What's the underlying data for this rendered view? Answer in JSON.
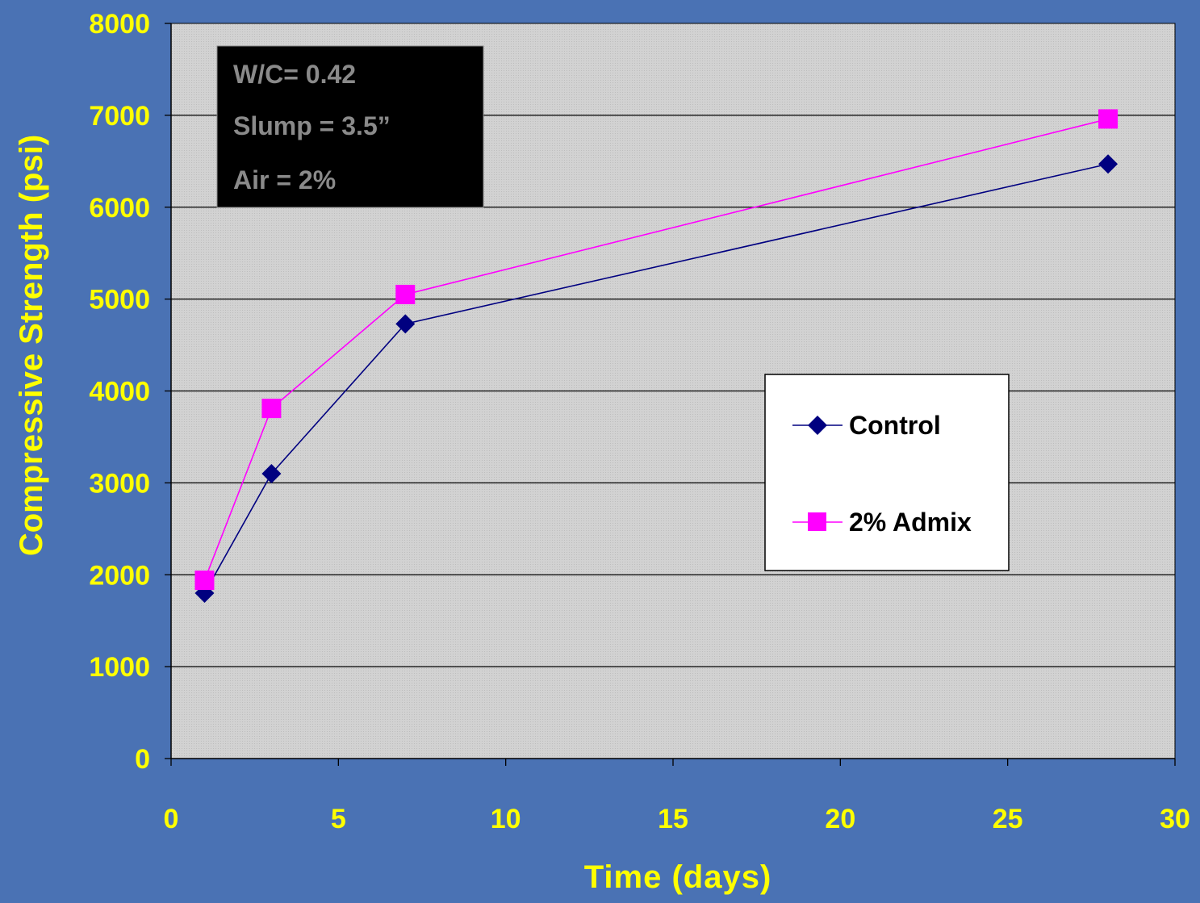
{
  "chart_data": {
    "type": "line",
    "xlabel": "Time (days)",
    "ylabel": "Compressive Strength (psi)",
    "xlim": [
      0,
      30
    ],
    "ylim": [
      0,
      8000
    ],
    "x_ticks": [
      "0",
      "5",
      "10",
      "15",
      "20",
      "25",
      "30"
    ],
    "y_ticks": [
      "0",
      "1000",
      "2000",
      "3000",
      "4000",
      "5000",
      "6000",
      "7000",
      "8000"
    ],
    "grid": "horizontal",
    "legend_position": "right",
    "annotations": [
      "W/C= 0.42",
      "Slump = 3.5”",
      "Air = 2%"
    ],
    "series": [
      {
        "name": "Control",
        "marker": "diamond",
        "color": "#000080",
        "x": [
          1,
          3,
          7,
          28
        ],
        "y": [
          1800,
          3100,
          4730,
          6470
        ]
      },
      {
        "name": "2% Admix",
        "marker": "square",
        "color": "#ff00ff",
        "x": [
          1,
          3,
          7,
          28
        ],
        "y": [
          1940,
          3810,
          5050,
          6960
        ]
      }
    ]
  }
}
